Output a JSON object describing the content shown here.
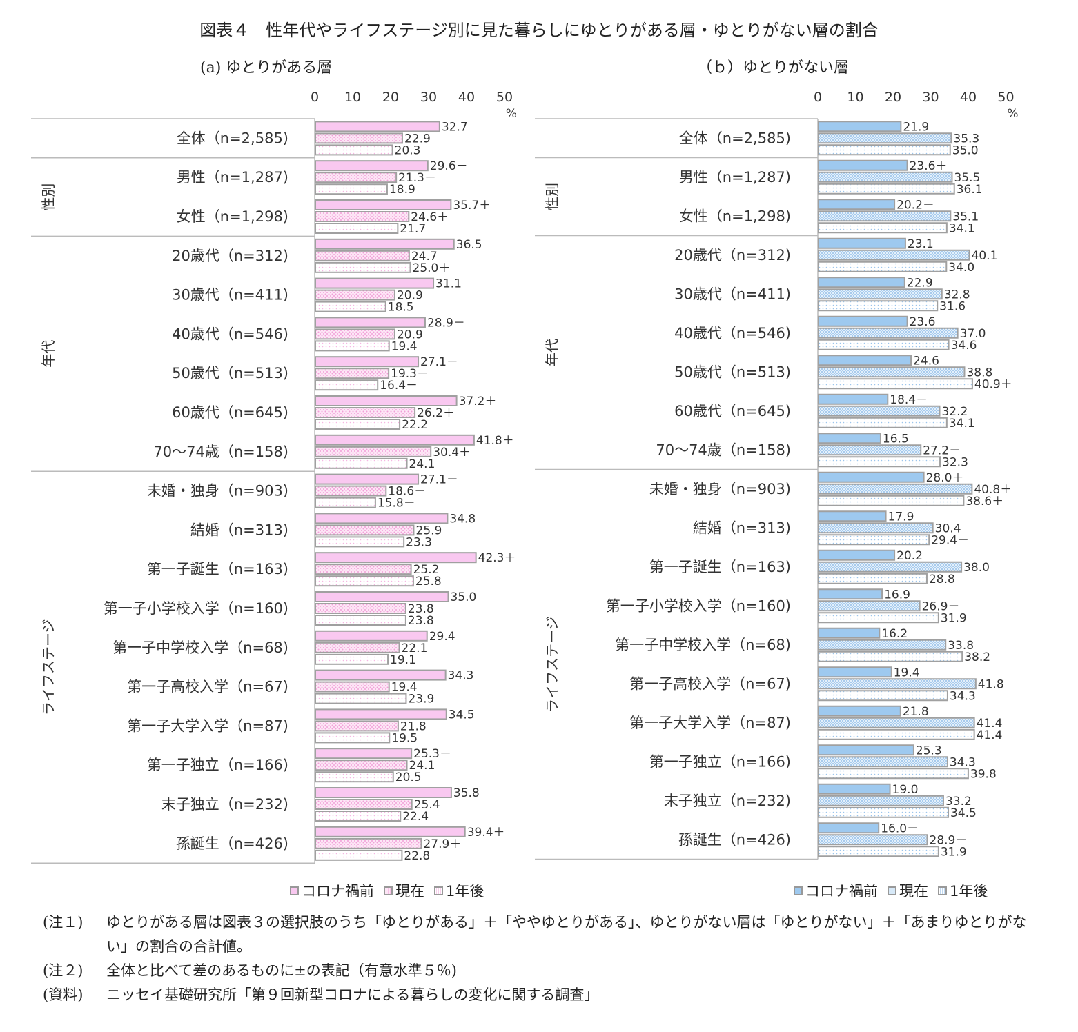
{
  "title": "図表４　性年代やライフステージ別に見た暮らしにゆとりがある層・ゆとりがない層の割合",
  "legend": [
    "コロナ禍前",
    "現在",
    "1年後"
  ],
  "colors": {
    "a_before": "#f9c8f0",
    "a_pattern": "#f4a6dc",
    "b_before": "#9ec9ef",
    "b_pattern": "#8ab8e6",
    "bar_border": "#a0a0a0"
  },
  "chart_data": [
    {
      "type": "bar",
      "orientation": "horizontal",
      "title": "(a) ゆとりがある層",
      "unit": "%",
      "xlim": [
        0,
        50
      ],
      "xticks": [
        0,
        10,
        20,
        30,
        40,
        50
      ],
      "categories": [
        "全体（n=2,585)",
        "男性（n=1,287)",
        "女性（n=1,298)",
        "20歳代（n=312)",
        "30歳代（n=411)",
        "40歳代（n=546)",
        "50歳代（n=513)",
        "60歳代（n=645)",
        "70～74歳（n=158)",
        "未婚・独身（n=903)",
        "結婚（n=313)",
        "第一子誕生（n=163)",
        "第一子小学校入学（n=160)",
        "第一子中学校入学（n=68)",
        "第一子高校入学（n=67)",
        "第一子大学入学（n=87)",
        "第一子独立（n=166)",
        "末子独立（n=232)",
        "孫誕生（n=426)"
      ],
      "groups": [
        {
          "label": "",
          "start": 0,
          "count": 1
        },
        {
          "label": "性別",
          "start": 1,
          "count": 2
        },
        {
          "label": "年代",
          "start": 3,
          "count": 6
        },
        {
          "label": "ライフステージ",
          "start": 9,
          "count": 10
        }
      ],
      "series": [
        {
          "name": "コロナ禍前",
          "values": [
            32.7,
            29.6,
            35.7,
            36.5,
            31.1,
            28.9,
            27.1,
            37.2,
            41.8,
            27.1,
            34.8,
            42.3,
            35.0,
            29.4,
            34.3,
            34.5,
            25.3,
            35.8,
            39.4
          ],
          "labels": [
            "32.7",
            "29.6－",
            "35.7＋",
            "36.5",
            "31.1",
            "28.9－",
            "27.1－",
            "37.2＋",
            "41.8＋",
            "27.1－",
            "34.8",
            "42.3＋",
            "35.0",
            "29.4",
            "34.3",
            "34.5",
            "25.3－",
            "35.8",
            "39.4＋"
          ]
        },
        {
          "name": "現在",
          "values": [
            22.9,
            21.3,
            24.6,
            24.7,
            20.9,
            20.9,
            19.3,
            26.2,
            30.4,
            18.6,
            25.9,
            25.2,
            23.8,
            22.1,
            19.4,
            21.8,
            24.1,
            25.4,
            27.9
          ],
          "labels": [
            "22.9",
            "21.3－",
            "24.6＋",
            "24.7",
            "20.9",
            "20.9",
            "19.3－",
            "26.2＋",
            "30.4＋",
            "18.6－",
            "25.9",
            "25.2",
            "23.8",
            "22.1",
            "19.4",
            "21.8",
            "24.1",
            "25.4",
            "27.9＋"
          ]
        },
        {
          "name": "1年後",
          "values": [
            20.3,
            18.9,
            21.7,
            25.0,
            18.5,
            19.4,
            16.4,
            22.2,
            24.1,
            15.8,
            23.3,
            25.8,
            23.8,
            19.1,
            23.9,
            19.5,
            20.5,
            22.4,
            22.8
          ],
          "labels": [
            "20.3",
            "18.9",
            "21.7",
            "25.0＋",
            "18.5",
            "19.4",
            "16.4－",
            "22.2",
            "24.1",
            "15.8－",
            "23.3",
            "25.8",
            "23.8",
            "19.1",
            "23.9",
            "19.5",
            "20.5",
            "22.4",
            "22.8"
          ]
        }
      ]
    },
    {
      "type": "bar",
      "orientation": "horizontal",
      "title": "（ｂ）ゆとりがない層",
      "unit": "%",
      "xlim": [
        0,
        50
      ],
      "xticks": [
        0,
        10,
        20,
        30,
        40,
        50
      ],
      "categories": [
        "全体（n=2,585)",
        "男性（n=1,287)",
        "女性（n=1,298)",
        "20歳代（n=312)",
        "30歳代（n=411)",
        "40歳代（n=546)",
        "50歳代（n=513)",
        "60歳代（n=645)",
        "70～74歳（n=158)",
        "未婚・独身（n=903)",
        "結婚（n=313)",
        "第一子誕生（n=163)",
        "第一子小学校入学（n=160)",
        "第一子中学校入学（n=68)",
        "第一子高校入学（n=67)",
        "第一子大学入学（n=87)",
        "第一子独立（n=166)",
        "末子独立（n=232)",
        "孫誕生（n=426)"
      ],
      "groups": [
        {
          "label": "",
          "start": 0,
          "count": 1
        },
        {
          "label": "性別",
          "start": 1,
          "count": 2
        },
        {
          "label": "年代",
          "start": 3,
          "count": 6
        },
        {
          "label": "ライフステージ",
          "start": 9,
          "count": 10
        }
      ],
      "series": [
        {
          "name": "コロナ禍前",
          "values": [
            21.9,
            23.6,
            20.2,
            23.1,
            22.9,
            23.6,
            24.6,
            18.4,
            16.5,
            28.0,
            17.9,
            20.2,
            16.9,
            16.2,
            19.4,
            21.8,
            25.3,
            19.0,
            16.0
          ],
          "labels": [
            "21.9",
            "23.6＋",
            "20.2－",
            "23.1",
            "22.9",
            "23.6",
            "24.6",
            "18.4－",
            "16.5",
            "28.0＋",
            "17.9",
            "20.2",
            "16.9",
            "16.2",
            "19.4",
            "21.8",
            "25.3",
            "19.0",
            "16.0－"
          ]
        },
        {
          "name": "現在",
          "values": [
            35.3,
            35.5,
            35.1,
            40.1,
            32.8,
            37.0,
            38.8,
            32.2,
            27.2,
            40.8,
            30.4,
            38.0,
            26.9,
            33.8,
            41.8,
            41.4,
            34.3,
            33.2,
            28.9
          ],
          "labels": [
            "35.3",
            "35.5",
            "35.1",
            "40.1",
            "32.8",
            "37.0",
            "38.8",
            "32.2",
            "27.2－",
            "40.8＋",
            "30.4",
            "38.0",
            "26.9－",
            "33.8",
            "41.8",
            "41.4",
            "34.3",
            "33.2",
            "28.9－"
          ]
        },
        {
          "name": "1年後",
          "values": [
            35.0,
            36.1,
            34.1,
            34.0,
            31.6,
            34.6,
            40.9,
            34.1,
            32.3,
            38.6,
            29.4,
            28.8,
            31.9,
            38.2,
            34.3,
            41.4,
            39.8,
            34.5,
            31.9
          ],
          "labels": [
            "35.0",
            "36.1",
            "34.1",
            "34.0",
            "31.6",
            "34.6",
            "40.9＋",
            "34.1",
            "32.3",
            "38.6＋",
            "29.4－",
            "28.8",
            "31.9",
            "38.2",
            "34.3",
            "41.4",
            "39.8",
            "34.5",
            "31.9"
          ]
        }
      ]
    }
  ],
  "notes": [
    {
      "tag": "(注１)",
      "text": "ゆとりがある層は図表３の選択肢のうち「ゆとりがある」＋「ややゆとりがある」、ゆとりがない層は「ゆとりがない」＋「あまりゆとりがない」の割合の合計値。"
    },
    {
      "tag": "(注２)",
      "text": "全体と比べて差のあるものに±の表記（有意水準５％)"
    },
    {
      "tag": "(資料)",
      "text": "ニッセイ基礎研究所「第９回新型コロナによる暮らしの変化に関する調査」"
    }
  ]
}
